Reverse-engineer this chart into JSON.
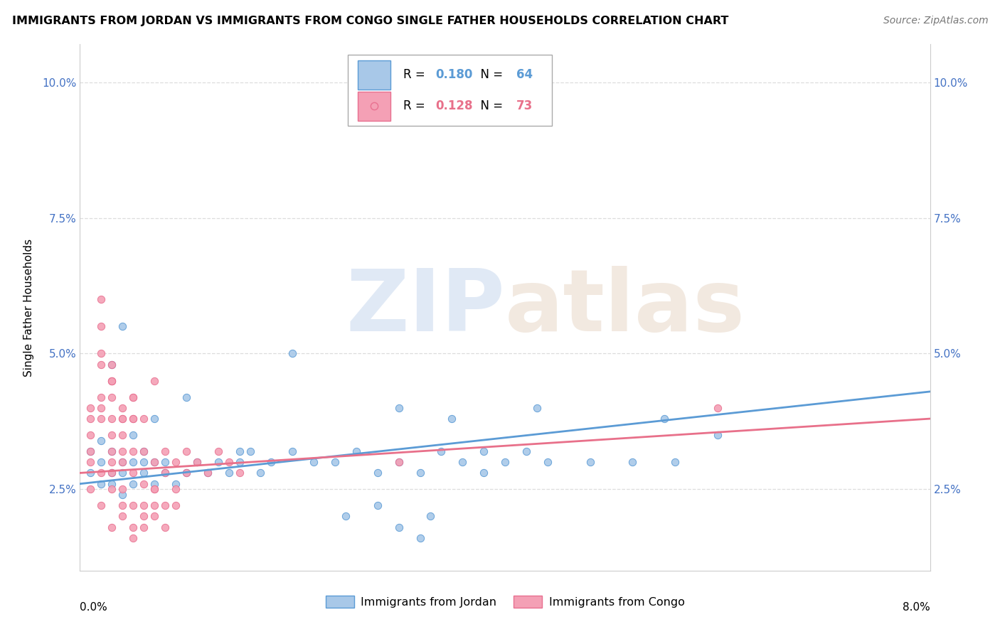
{
  "title": "IMMIGRANTS FROM JORDAN VS IMMIGRANTS FROM CONGO SINGLE FATHER HOUSEHOLDS CORRELATION CHART",
  "source": "Source: ZipAtlas.com",
  "ylabel": "Single Father Households",
  "yticks": [
    0.025,
    0.05,
    0.075,
    0.1
  ],
  "ytick_labels": [
    "2.5%",
    "5.0%",
    "7.5%",
    "10.0%"
  ],
  "xlim": [
    0.0,
    0.08
  ],
  "ylim": [
    0.01,
    0.107
  ],
  "jordan_R": 0.18,
  "jordan_N": 64,
  "congo_R": 0.128,
  "congo_N": 73,
  "jordan_color": "#a8c8e8",
  "congo_color": "#f4a0b5",
  "jordan_edge_color": "#5b9bd5",
  "congo_edge_color": "#e87090",
  "jordan_line_color": "#5b9bd5",
  "congo_line_color": "#e8708a",
  "background_color": "#ffffff",
  "grid_color": "#dddddd",
  "watermark_zip_color": "#c8d8ee",
  "watermark_atlas_color": "#e8d8c8",
  "jordan_x": [
    0.001,
    0.001,
    0.002,
    0.002,
    0.002,
    0.003,
    0.003,
    0.003,
    0.004,
    0.004,
    0.004,
    0.005,
    0.005,
    0.006,
    0.006,
    0.007,
    0.007,
    0.008,
    0.008,
    0.009,
    0.01,
    0.011,
    0.012,
    0.013,
    0.014,
    0.015,
    0.016,
    0.017,
    0.018,
    0.02,
    0.022,
    0.024,
    0.026,
    0.028,
    0.03,
    0.032,
    0.034,
    0.036,
    0.038,
    0.04,
    0.042,
    0.044,
    0.048,
    0.052,
    0.056,
    0.06,
    0.02,
    0.025,
    0.03,
    0.035,
    0.003,
    0.004,
    0.005,
    0.006,
    0.007,
    0.01,
    0.015,
    0.038,
    0.043,
    0.055,
    0.03,
    0.028,
    0.033,
    0.032
  ],
  "jordan_y": [
    0.028,
    0.032,
    0.03,
    0.026,
    0.034,
    0.028,
    0.032,
    0.026,
    0.03,
    0.028,
    0.024,
    0.03,
    0.026,
    0.028,
    0.032,
    0.026,
    0.03,
    0.028,
    0.03,
    0.026,
    0.028,
    0.03,
    0.028,
    0.03,
    0.028,
    0.03,
    0.032,
    0.028,
    0.03,
    0.032,
    0.03,
    0.03,
    0.032,
    0.028,
    0.03,
    0.028,
    0.032,
    0.03,
    0.028,
    0.03,
    0.032,
    0.03,
    0.03,
    0.03,
    0.03,
    0.035,
    0.05,
    0.02,
    0.04,
    0.038,
    0.048,
    0.055,
    0.035,
    0.03,
    0.038,
    0.042,
    0.032,
    0.032,
    0.04,
    0.038,
    0.018,
    0.022,
    0.02,
    0.016
  ],
  "congo_x": [
    0.001,
    0.001,
    0.001,
    0.002,
    0.002,
    0.002,
    0.003,
    0.003,
    0.003,
    0.004,
    0.004,
    0.004,
    0.005,
    0.005,
    0.005,
    0.006,
    0.006,
    0.007,
    0.007,
    0.008,
    0.008,
    0.009,
    0.009,
    0.01,
    0.01,
    0.011,
    0.012,
    0.013,
    0.014,
    0.015,
    0.002,
    0.003,
    0.003,
    0.004,
    0.005,
    0.006,
    0.007,
    0.002,
    0.003,
    0.001,
    0.001,
    0.002,
    0.003,
    0.004,
    0.005,
    0.002,
    0.003,
    0.001,
    0.002,
    0.003,
    0.004,
    0.003,
    0.004,
    0.005,
    0.006,
    0.007,
    0.008,
    0.009,
    0.002,
    0.003,
    0.004,
    0.005,
    0.003,
    0.004,
    0.005,
    0.006,
    0.007,
    0.005,
    0.006,
    0.03,
    0.007,
    0.008,
    0.06
  ],
  "congo_y": [
    0.03,
    0.035,
    0.04,
    0.042,
    0.048,
    0.038,
    0.038,
    0.045,
    0.032,
    0.04,
    0.035,
    0.03,
    0.038,
    0.032,
    0.028,
    0.032,
    0.026,
    0.03,
    0.025,
    0.028,
    0.032,
    0.025,
    0.03,
    0.028,
    0.032,
    0.03,
    0.028,
    0.032,
    0.03,
    0.028,
    0.05,
    0.042,
    0.048,
    0.038,
    0.042,
    0.038,
    0.045,
    0.055,
    0.045,
    0.038,
    0.032,
    0.04,
    0.035,
    0.032,
    0.038,
    0.028,
    0.03,
    0.025,
    0.022,
    0.025,
    0.02,
    0.018,
    0.022,
    0.018,
    0.022,
    0.02,
    0.018,
    0.022,
    0.06,
    0.045,
    0.038,
    0.042,
    0.028,
    0.025,
    0.022,
    0.02,
    0.022,
    0.016,
    0.018,
    0.03,
    0.025,
    0.022,
    0.04
  ]
}
